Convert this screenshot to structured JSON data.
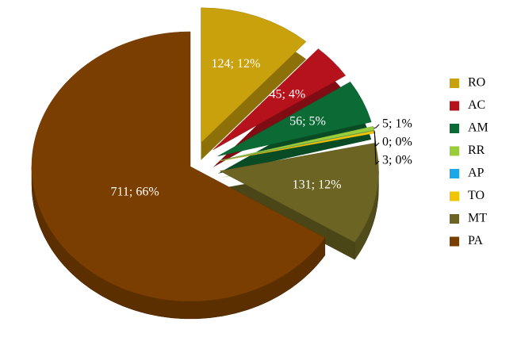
{
  "chart_data": {
    "type": "pie3d",
    "categories": [
      "RO",
      "AC",
      "AM",
      "RR",
      "AP",
      "TO",
      "MT",
      "PA"
    ],
    "values": [
      124,
      45,
      56,
      5,
      0,
      3,
      131,
      711
    ],
    "value_labels": [
      "124; 12%",
      "45; 4%",
      "56; 5%",
      "5; 1%",
      "0; 0%",
      "3; 0%",
      "131; 12%",
      "711; 66%"
    ],
    "colors": [
      "#c9a10c",
      "#b5121b",
      "#0c6b35",
      "#9acd3a",
      "#1ca8e8",
      "#f2c300",
      "#6b6422",
      "#7a3f00"
    ],
    "legend": "right"
  }
}
